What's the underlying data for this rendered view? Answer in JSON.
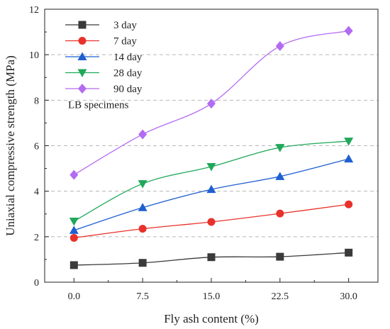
{
  "chart_data": {
    "type": "line",
    "xlabel": "Fly ash content (%)",
    "ylabel": "Uniaxial compressive strength (MPa)",
    "x": [
      0.0,
      7.5,
      15.0,
      22.5,
      30.0
    ],
    "x_tick_labels": [
      "0.0",
      "7.5",
      "15.0",
      "22.5",
      "30.0"
    ],
    "xlim": [
      -3.2,
      33.2
    ],
    "ylim": [
      0,
      12
    ],
    "y_ticks": [
      0,
      2,
      4,
      6,
      8,
      10,
      12
    ],
    "grid": "horizontal dashed",
    "legend_position": "top-left",
    "annotation": "LB specimens",
    "series": [
      {
        "name": "3 day",
        "color": "#3a3a3a",
        "marker": "square",
        "values": [
          0.75,
          0.85,
          1.1,
          1.12,
          1.3
        ]
      },
      {
        "name": "7 day",
        "color": "#e8312a",
        "marker": "circle",
        "values": [
          1.95,
          2.35,
          2.65,
          3.02,
          3.42
        ]
      },
      {
        "name": "14 day",
        "color": "#1f5fd1",
        "marker": "triangle-up",
        "values": [
          2.28,
          3.28,
          4.08,
          4.65,
          5.42
        ]
      },
      {
        "name": "28 day",
        "color": "#1fa85a",
        "marker": "triangle-down",
        "values": [
          2.68,
          4.33,
          5.08,
          5.92,
          6.2
        ]
      },
      {
        "name": "90 day",
        "color": "#b36bf0",
        "marker": "diamond",
        "values": [
          4.72,
          6.5,
          7.85,
          10.38,
          11.05
        ]
      }
    ]
  }
}
